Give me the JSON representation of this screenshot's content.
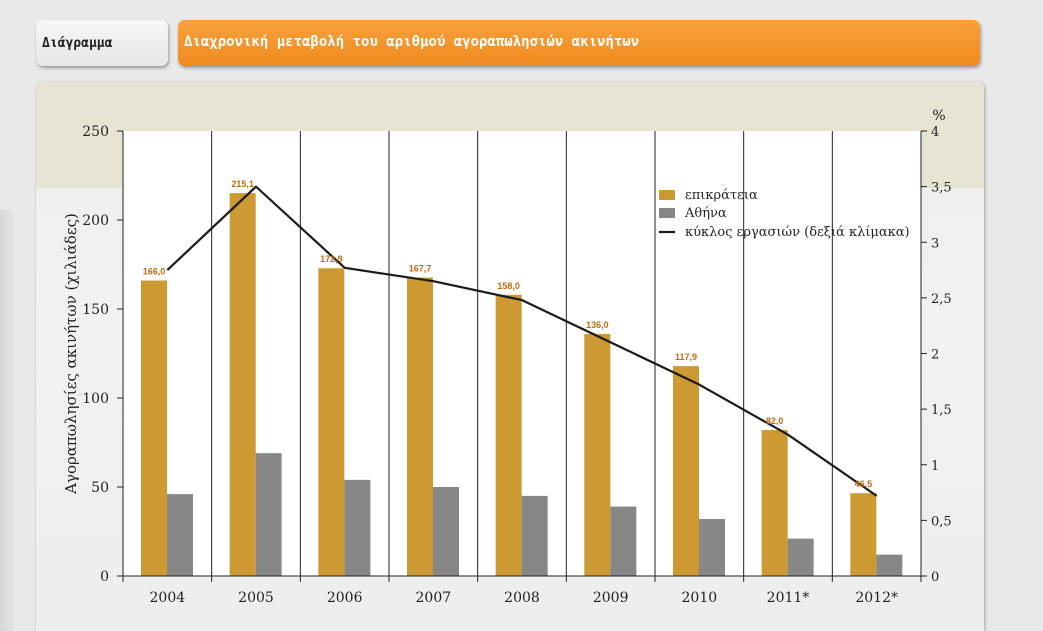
{
  "header": {
    "tab_label": "Διάγραμμα",
    "title": "Διαχρονική μεταβολή του αριθμού αγοραπωλησιών ακινήτων"
  },
  "colors": {
    "header_orange": "#f4952e",
    "bar_periphery": "#cc9933",
    "bar_athens": "#878787",
    "line": "#1a1a1a",
    "data_label": "#c26a12"
  },
  "chart_data": {
    "type": "bar",
    "categories": [
      "2004",
      "2005",
      "2006",
      "2007",
      "2008",
      "2009",
      "2010",
      "2011*",
      "2012*"
    ],
    "series": [
      {
        "name": "επικράτεια",
        "values": [
          166.0,
          215.1,
          172.9,
          167.7,
          158.0,
          136.0,
          117.9,
          82.0,
          46.5
        ],
        "labels": [
          "166,0",
          "215,1",
          "172,9",
          "167,7",
          "158,0",
          "136,0",
          "117,9",
          "82,0",
          "46,5"
        ]
      },
      {
        "name": "Αθήνα",
        "values": [
          46,
          69,
          54,
          50,
          45,
          39,
          32,
          21,
          12
        ]
      },
      {
        "name": "κύκλος εργασιών (δεξιά κλίμακα)",
        "type": "line",
        "axis": "right",
        "values": [
          2.75,
          3.5,
          2.77,
          2.65,
          2.48,
          2.1,
          1.72,
          1.27,
          0.72
        ]
      }
    ],
    "ylabel": "Αγοραπωλησίες ακινήτων (χιλιάδες)",
    "ylim": [
      0,
      250
    ],
    "yticks": [
      "0",
      "50",
      "100",
      "150",
      "200",
      "250"
    ],
    "y2label": "%",
    "y2lim": [
      0,
      4
    ],
    "y2ticks": [
      "0",
      "0,5",
      "1",
      "1,5",
      "2",
      "2,5",
      "3",
      "3,5",
      "4"
    ],
    "legend_position": "top-right",
    "grid": false
  }
}
